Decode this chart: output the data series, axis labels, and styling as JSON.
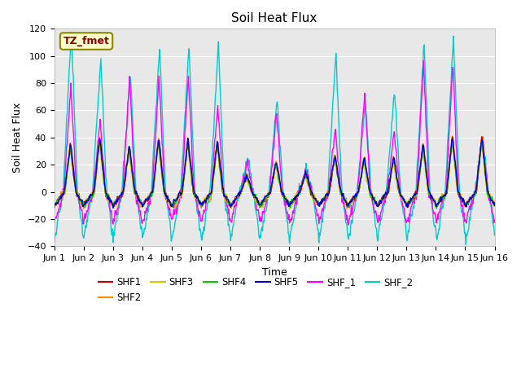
{
  "title": "Soil Heat Flux",
  "xlabel": "Time",
  "ylabel": "Soil Heat Flux",
  "ylim": [
    -40,
    120
  ],
  "xlim": [
    0,
    15
  ],
  "x_tick_labels": [
    "Jun 1",
    "Jun 2",
    "Jun 3",
    "Jun 4",
    "Jun 5",
    "Jun 6",
    "Jun 7",
    "Jun 8",
    "Jun 9",
    "Jun 10",
    "Jun 11",
    "Jun 12",
    "Jun 13",
    "Jun 14",
    "Jun 15",
    "Jun 16"
  ],
  "background_color": "#e8e8e8",
  "series_colors": {
    "SHF1": "#cc0000",
    "SHF2": "#ff8800",
    "SHF3": "#cccc00",
    "SHF4": "#00cc00",
    "SHF5": "#0000cc",
    "SHF_1": "#ff00ff",
    "SHF_2": "#00cccc"
  },
  "legend_label": "TZ_fmet",
  "legend_bg": "#ffffcc",
  "legend_border": "#888800",
  "shf2_peaks": [
    120,
    100,
    88,
    108,
    109,
    108,
    25,
    69,
    16,
    102,
    65,
    74,
    110,
    115,
    40
  ],
  "shf1_peaks": [
    35,
    40,
    33,
    39,
    38,
    37,
    12,
    22,
    14,
    27,
    25,
    25,
    35,
    40,
    40
  ],
  "shf_1_peaks": [
    79,
    52,
    85,
    87,
    86,
    64,
    21,
    58,
    17,
    47,
    74,
    46,
    95,
    95,
    41
  ]
}
